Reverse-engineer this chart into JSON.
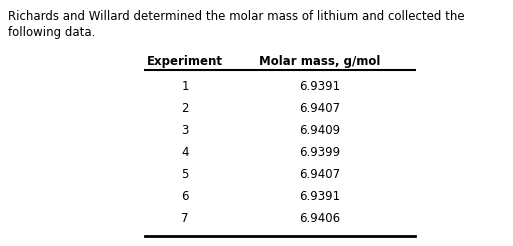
{
  "title_line1": "Richards and Willard determined the molar mass of lithium and collected the",
  "title_line2": "following data.",
  "col1_header": "Experiment",
  "col2_header": "Molar mass, g/mol",
  "experiments": [
    1,
    2,
    3,
    4,
    5,
    6,
    7
  ],
  "molar_masses": [
    "6.9391",
    "6.9407",
    "6.9409",
    "6.9399",
    "6.9407",
    "6.9391",
    "6.9406"
  ],
  "bg_color": "#ffffff",
  "text_color": "#000000",
  "title_fontsize": 8.5,
  "header_fontsize": 8.5,
  "data_fontsize": 8.5,
  "fig_width": 5.13,
  "fig_height": 2.46
}
